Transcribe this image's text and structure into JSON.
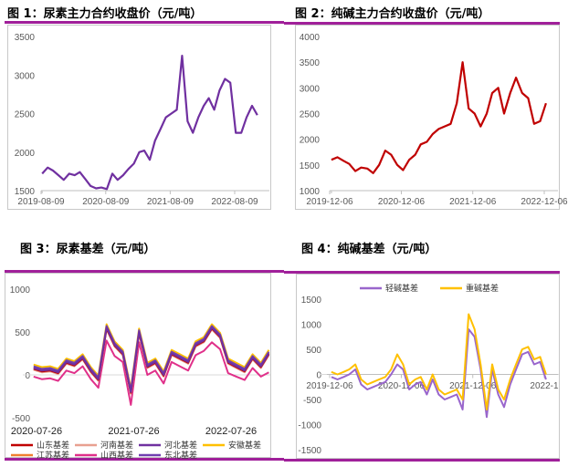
{
  "chart_data": [
    {
      "type": "line",
      "title": "图 1：尿素主力合约收盘价（元/吨）",
      "ylim": [
        1500,
        3500
      ],
      "yticks": [
        1500,
        2000,
        2500,
        3000,
        3500
      ],
      "xticks": [
        "2019-08-09",
        "2020-08-09",
        "2021-08-09",
        "2022-08-09"
      ],
      "grid": false,
      "x": [
        "2019-08",
        "2019-09",
        "2019-10",
        "2019-11",
        "2019-12",
        "2020-01",
        "2020-02",
        "2020-03",
        "2020-04",
        "2020-05",
        "2020-06",
        "2020-07",
        "2020-08",
        "2020-09",
        "2020-10",
        "2020-11",
        "2020-12",
        "2021-01",
        "2021-02",
        "2021-03",
        "2021-04",
        "2021-05",
        "2021-06",
        "2021-07",
        "2021-08",
        "2021-09",
        "2021-10",
        "2021-11",
        "2021-12",
        "2022-01",
        "2022-02",
        "2022-03",
        "2022-04",
        "2022-05",
        "2022-06",
        "2022-07",
        "2022-08",
        "2022-09",
        "2022-10",
        "2022-11",
        "2022-12"
      ],
      "series": [
        {
          "color": "#7030a0",
          "values": [
            1720,
            1800,
            1760,
            1700,
            1640,
            1720,
            1700,
            1740,
            1650,
            1560,
            1530,
            1540,
            1520,
            1720,
            1640,
            1700,
            1780,
            1850,
            2000,
            2020,
            1900,
            2150,
            2300,
            2450,
            2500,
            2550,
            3250,
            2400,
            2250,
            2450,
            2600,
            2700,
            2550,
            2800,
            2950,
            2900,
            2250,
            2250,
            2450,
            2600,
            2480
          ]
        }
      ]
    },
    {
      "type": "line",
      "title": "图 2：纯碱主力合约收盘价（元/吨）",
      "ylim": [
        1000,
        4000
      ],
      "yticks": [
        1000,
        1500,
        2000,
        2500,
        3000,
        3500,
        4000
      ],
      "xticks": [
        "2019-12-06",
        "2020-12-06",
        "2021-12-06",
        "2022-12-06"
      ],
      "grid": false,
      "x": [
        "2019-12",
        "2020-01",
        "2020-02",
        "2020-03",
        "2020-04",
        "2020-05",
        "2020-06",
        "2020-07",
        "2020-08",
        "2020-09",
        "2020-10",
        "2020-11",
        "2020-12",
        "2021-01",
        "2021-02",
        "2021-03",
        "2021-04",
        "2021-05",
        "2021-06",
        "2021-07",
        "2021-08",
        "2021-09",
        "2021-10",
        "2021-11",
        "2021-12",
        "2022-01",
        "2022-02",
        "2022-03",
        "2022-04",
        "2022-05",
        "2022-06",
        "2022-07",
        "2022-08",
        "2022-09",
        "2022-10",
        "2022-11",
        "2022-12"
      ],
      "series": [
        {
          "color": "#c00000",
          "values": [
            1600,
            1650,
            1580,
            1520,
            1380,
            1450,
            1430,
            1340,
            1500,
            1780,
            1700,
            1500,
            1400,
            1600,
            1700,
            1900,
            1950,
            2100,
            2200,
            2250,
            2300,
            2700,
            3500,
            2600,
            2500,
            2250,
            2500,
            2900,
            3000,
            2500,
            2900,
            3200,
            2900,
            2800,
            2300,
            2350,
            2700
          ]
        }
      ]
    },
    {
      "type": "line",
      "title": "图 3：尿素基差（元/吨）",
      "ylim": [
        -500,
        1000
      ],
      "yticks": [
        -500,
        0,
        500,
        1000
      ],
      "xticks": [
        "2020-07-26",
        "2021-07-26",
        "2022-07-26"
      ],
      "grid": false,
      "legend": "bottom",
      "x": [
        "2020-07",
        "2020-08",
        "2020-09",
        "2020-10",
        "2020-11",
        "2020-12",
        "2021-01",
        "2021-02",
        "2021-03",
        "2021-04",
        "2021-05",
        "2021-06",
        "2021-07",
        "2021-08",
        "2021-09",
        "2021-10",
        "2021-11",
        "2021-12",
        "2022-01",
        "2022-02",
        "2022-03",
        "2022-04",
        "2022-05",
        "2022-06",
        "2022-07",
        "2022-08",
        "2022-09",
        "2022-10",
        "2022-11",
        "2022-12"
      ],
      "series": [
        {
          "name": "山东基差",
          "color": "#c00000",
          "values": [
            70,
            40,
            50,
            20,
            140,
            110,
            190,
            40,
            -60,
            540,
            340,
            240,
            -210,
            490,
            90,
            140,
            -10,
            240,
            190,
            140,
            340,
            390,
            540,
            440,
            140,
            90,
            40,
            190,
            90,
            240
          ]
        },
        {
          "name": "河南基差",
          "color": "#e8a090",
          "values": [
            60,
            30,
            40,
            10,
            130,
            100,
            180,
            30,
            -70,
            530,
            330,
            230,
            -220,
            480,
            80,
            130,
            -20,
            230,
            180,
            130,
            330,
            380,
            530,
            430,
            130,
            80,
            30,
            180,
            80,
            230
          ]
        },
        {
          "name": "河北基差",
          "color": "#7030a0",
          "values": [
            80,
            50,
            60,
            30,
            150,
            120,
            200,
            50,
            -50,
            550,
            350,
            250,
            -200,
            500,
            100,
            150,
            0,
            250,
            200,
            150,
            350,
            400,
            550,
            450,
            150,
            100,
            50,
            200,
            100,
            250
          ]
        },
        {
          "name": "安徽基差",
          "color": "#ffc000",
          "values": [
            120,
            90,
            100,
            70,
            190,
            160,
            240,
            90,
            -10,
            590,
            390,
            290,
            -160,
            540,
            140,
            190,
            40,
            290,
            240,
            190,
            390,
            440,
            590,
            490,
            190,
            140,
            90,
            240,
            140,
            290
          ]
        },
        {
          "name": "江苏基差",
          "color": "#f08030",
          "values": [
            90,
            60,
            70,
            40,
            160,
            130,
            210,
            60,
            -40,
            560,
            360,
            260,
            -190,
            510,
            110,
            160,
            10,
            260,
            210,
            160,
            360,
            410,
            560,
            460,
            160,
            110,
            60,
            210,
            110,
            260
          ]
        },
        {
          "name": "山西基差",
          "color": "#e0308a",
          "values": [
            -20,
            -50,
            -40,
            -70,
            50,
            20,
            100,
            -50,
            -150,
            400,
            220,
            150,
            -350,
            380,
            0,
            50,
            -100,
            150,
            100,
            50,
            230,
            280,
            380,
            300,
            20,
            -20,
            -60,
            80,
            -20,
            30
          ]
        },
        {
          "name": "东北基差",
          "color": "#7040b0",
          "values": [
            100,
            70,
            80,
            50,
            170,
            140,
            220,
            70,
            -30,
            570,
            370,
            270,
            -180,
            520,
            120,
            170,
            20,
            270,
            220,
            170,
            370,
            420,
            570,
            470,
            170,
            120,
            70,
            220,
            120,
            270
          ]
        }
      ]
    },
    {
      "type": "line",
      "title": "图 4：纯碱基差（元/吨）",
      "ylim": [
        -1500,
        1500
      ],
      "yticks": [
        -1500,
        -1000,
        -500,
        0,
        500,
        1000,
        1500
      ],
      "xticks": [
        "2019-12-06",
        "2020-12-06",
        "2021-12-06",
        "2022-12-06"
      ],
      "xtick_labels": [
        "2019-12-06",
        "2020-12-06",
        "2021-12-06",
        "2022-1"
      ],
      "grid": false,
      "legend": "top",
      "x": [
        "2019-12",
        "2020-01",
        "2020-02",
        "2020-03",
        "2020-04",
        "2020-05",
        "2020-06",
        "2020-07",
        "2020-08",
        "2020-09",
        "2020-10",
        "2020-11",
        "2020-12",
        "2021-01",
        "2021-02",
        "2021-03",
        "2021-04",
        "2021-05",
        "2021-06",
        "2021-07",
        "2021-08",
        "2021-09",
        "2021-10",
        "2021-11",
        "2021-12",
        "2022-01",
        "2022-02",
        "2022-03",
        "2022-04",
        "2022-05",
        "2022-06",
        "2022-07",
        "2022-08",
        "2022-09",
        "2022-10",
        "2022-11",
        "2022-12"
      ],
      "series": [
        {
          "name": "轻碱基差",
          "color": "#9966cc",
          "values": [
            -50,
            -100,
            -50,
            0,
            100,
            -200,
            -300,
            -250,
            -200,
            -150,
            0,
            200,
            100,
            -300,
            -200,
            -150,
            -400,
            -100,
            -400,
            -500,
            -450,
            -400,
            -700,
            900,
            750,
            100,
            -850,
            100,
            -400,
            -650,
            -200,
            100,
            400,
            450,
            200,
            250,
            -100
          ]
        },
        {
          "name": "重碱基差",
          "color": "#ffc000",
          "values": [
            50,
            0,
            50,
            100,
            200,
            -100,
            -200,
            -150,
            -100,
            -50,
            100,
            400,
            200,
            -200,
            -100,
            -50,
            -300,
            0,
            -300,
            -400,
            -350,
            -300,
            -500,
            1200,
            900,
            200,
            -700,
            200,
            -300,
            -500,
            -100,
            200,
            500,
            550,
            300,
            350,
            0
          ]
        }
      ]
    }
  ]
}
